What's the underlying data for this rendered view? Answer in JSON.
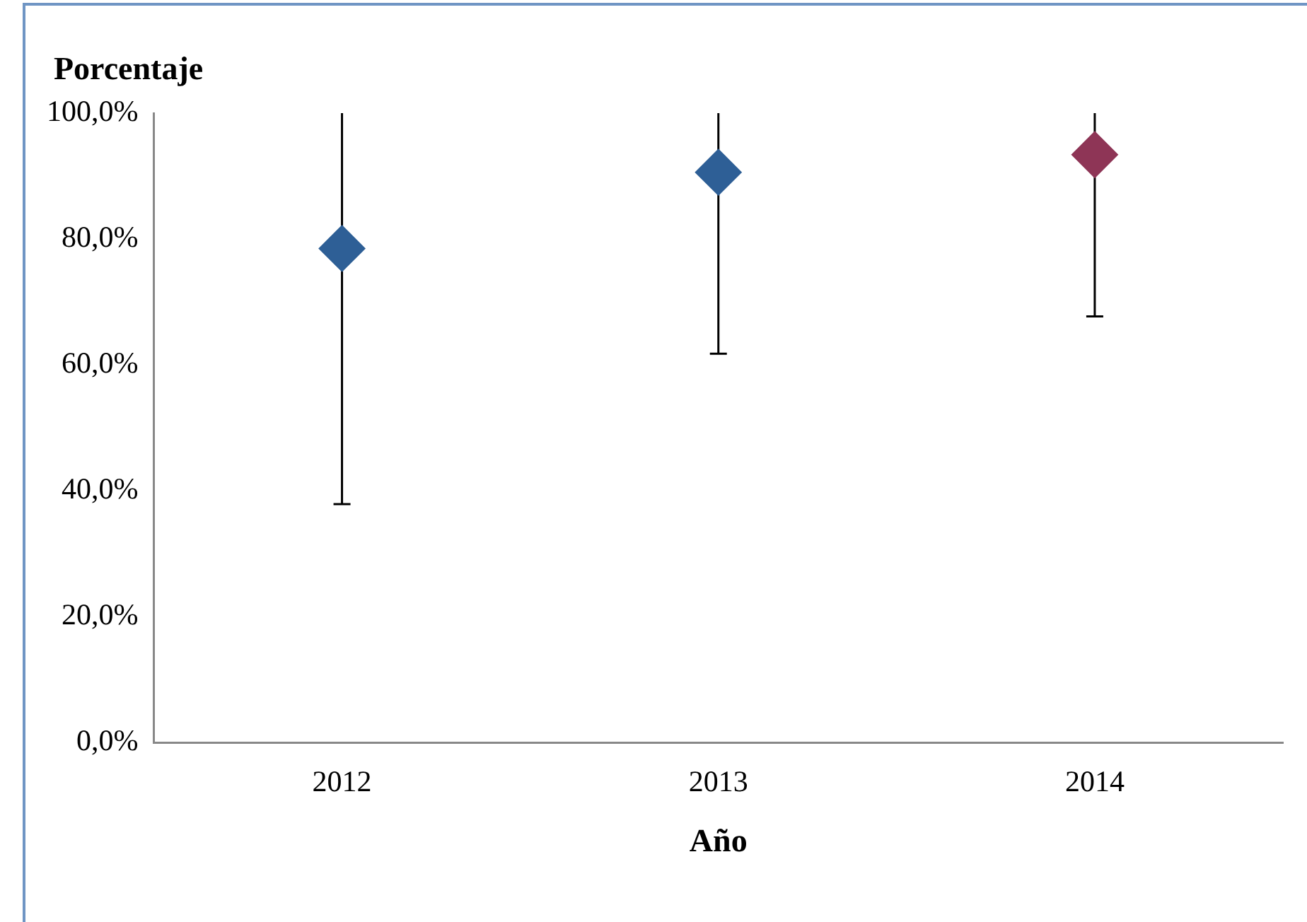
{
  "chart_data": {
    "type": "scatter",
    "ylabel": "Porcentaje",
    "xlabel": "Año",
    "categories": [
      "2012",
      "2013",
      "2014"
    ],
    "values": [
      78.5,
      90.6,
      93.4
    ],
    "colors": [
      "#2e5f96",
      "#2e5f96",
      "#8e3556"
    ],
    "errors": [
      [
        37.9,
        100
      ],
      [
        61.8,
        100
      ],
      [
        67.7,
        100
      ]
    ],
    "ylim": [
      0,
      100
    ],
    "yticks": [
      {
        "value": 0,
        "label": "0,0%"
      },
      {
        "value": 20,
        "label": "20,0%"
      },
      {
        "value": 40,
        "label": "40,0%"
      },
      {
        "value": 60,
        "label": "60,0%"
      },
      {
        "value": 80,
        "label": "80,0%"
      },
      {
        "value": 100,
        "label": "100,0%"
      }
    ],
    "marker": "diamond",
    "grid": false,
    "legend": false
  }
}
